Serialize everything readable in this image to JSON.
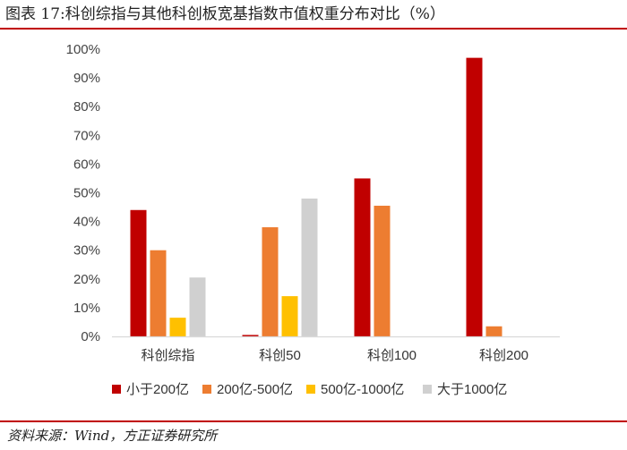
{
  "header": {
    "title": "图表 17:科创综指与其他科创板宽基指数市值权重分布对比（%）"
  },
  "footer": {
    "source": "资料来源：Wind，方正证券研究所"
  },
  "colors": {
    "rule": "#c00000",
    "axis": "#d9d9d9"
  },
  "chart_data": {
    "type": "bar",
    "title": "",
    "xlabel": "",
    "ylabel": "",
    "categories": [
      "科创综指",
      "科创50",
      "科创100",
      "科创200"
    ],
    "ylim": [
      0,
      100
    ],
    "yticks": [
      0,
      10,
      20,
      30,
      40,
      50,
      60,
      70,
      80,
      90,
      100
    ],
    "ytick_labels": [
      "0%",
      "10%",
      "20%",
      "30%",
      "40%",
      "50%",
      "60%",
      "70%",
      "80%",
      "90%",
      "100%"
    ],
    "grid": false,
    "legend_position": "bottom",
    "series": [
      {
        "name": "小于200亿",
        "color": "#c00000",
        "values": [
          44,
          0.5,
          55,
          97
        ]
      },
      {
        "name": "200亿-500亿",
        "color": "#ed7d31",
        "values": [
          30,
          38,
          45.5,
          3.5
        ]
      },
      {
        "name": "500亿-1000亿",
        "color": "#ffc000",
        "values": [
          6.5,
          14,
          0,
          0
        ]
      },
      {
        "name": "大于1000亿",
        "color": "#d0d0d0",
        "values": [
          20.5,
          48,
          0,
          0
        ]
      }
    ]
  }
}
